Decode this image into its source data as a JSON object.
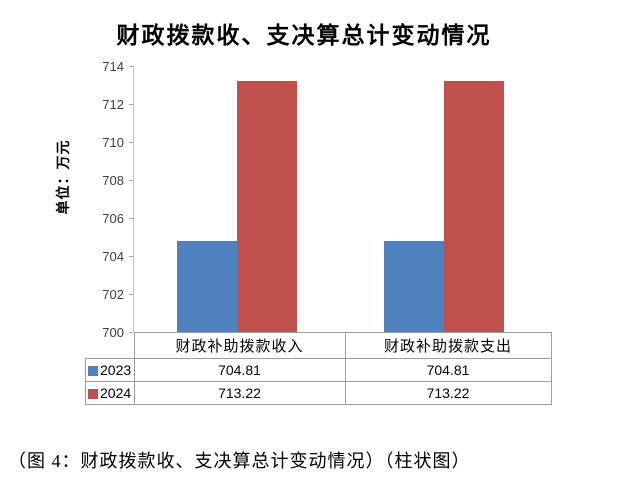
{
  "chart_data": {
    "type": "bar",
    "title": "财政拨款收、支决算总计变动情况",
    "unit_label": "单位：万元",
    "categories": [
      "财政补助拨款收入",
      "财政补助拨款支出"
    ],
    "series": [
      {
        "name": "2023",
        "color": "#4F81BD",
        "values": [
          704.81,
          704.81
        ]
      },
      {
        "name": "2024",
        "color": "#C0504D",
        "values": [
          713.22,
          713.22
        ]
      }
    ],
    "value_labels": [
      [
        "704.81",
        "704.81"
      ],
      [
        "713.22",
        "713.22"
      ]
    ],
    "ylim": [
      700,
      714
    ],
    "yticks": [
      700,
      702,
      704,
      706,
      708,
      710,
      712,
      714
    ],
    "grid": false,
    "legend_position": "table-bottom",
    "axis_color": "#BFBFBF",
    "tick_color": "#A6A6A6",
    "tick_label_color": "#3F3F3F",
    "table_border_color": "#9D9D9D"
  },
  "caption": "（图 4：财政拨款收、支决算总计变动情况）（柱状图）"
}
